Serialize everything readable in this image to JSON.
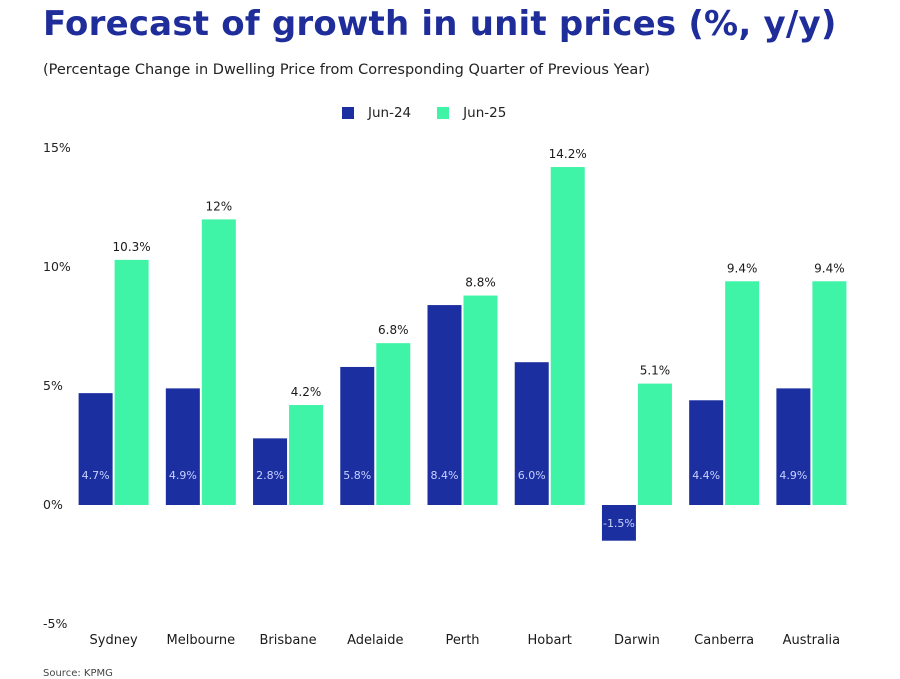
{
  "title": "Forecast of growth in unit prices (%, y/y)",
  "subtitle": "(Percentage Change in Dwelling Price from Corresponding Quarter of Previous Year)",
  "footer": "Source: KPMG",
  "colors": {
    "title": "#1e2d9a",
    "jun24": "#1b2fa0",
    "jun25": "#3ff3a7"
  },
  "chart_data": {
    "type": "bar",
    "categories": [
      "Sydney",
      "Melbourne",
      "Brisbane",
      "Adelaide",
      "Perth",
      "Hobart",
      "Darwin",
      "Canberra",
      "Australia"
    ],
    "series": [
      {
        "name": "Jun-24",
        "values": [
          4.7,
          4.9,
          2.8,
          5.8,
          8.4,
          6.0,
          -1.5,
          4.4,
          4.9
        ],
        "labels": [
          "4.7%",
          "4.9%",
          "2.8%",
          "5.8%",
          "8.4%",
          "6.0%",
          "-1.5%",
          "4.4%",
          "4.9%"
        ]
      },
      {
        "name": "Jun-25",
        "values": [
          10.3,
          12.0,
          4.2,
          6.8,
          8.8,
          14.2,
          5.1,
          9.4,
          9.4
        ],
        "labels": [
          "10.3%",
          "12%",
          "4.2%",
          "6.8%",
          "8.8%",
          "14.2%",
          "5.1%",
          "9.4%",
          "9.4%"
        ]
      }
    ],
    "ylim": [
      -5,
      15
    ],
    "yticks": [
      15,
      10,
      5,
      0,
      -5
    ],
    "ytick_labels": [
      "15%",
      "10%",
      "5%",
      "0%",
      "-5%"
    ],
    "legend_position": "top-center",
    "grid": false
  }
}
